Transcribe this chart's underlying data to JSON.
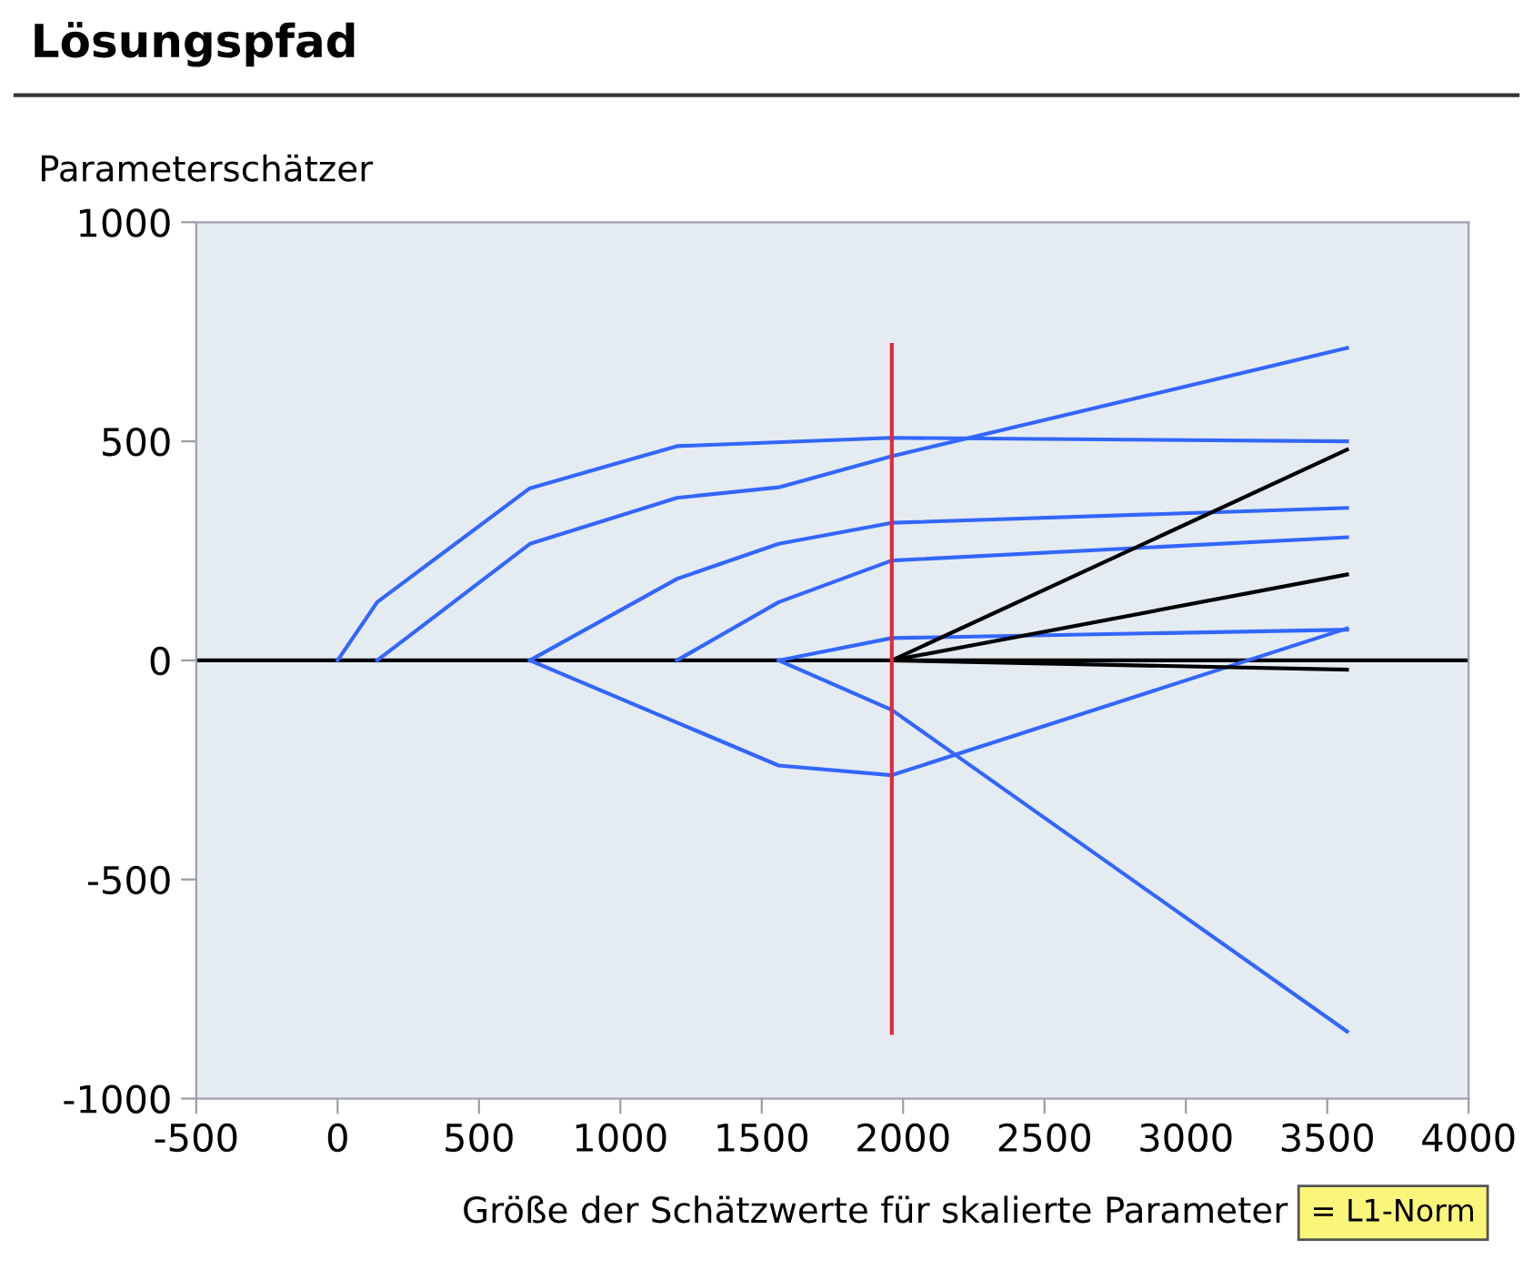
{
  "chart_data": {
    "type": "line",
    "title": "Lösungspfad",
    "xlabel": "Größe der Schätzwerte für skalierte Parameter",
    "ylabel": "Parameterschätzer",
    "annotations": [
      "= L1-Norm"
    ],
    "xlim": [
      -500,
      4000
    ],
    "xticks": [
      -500,
      0,
      500,
      1000,
      1500,
      2000,
      2500,
      3000,
      3500,
      4000
    ],
    "ylim": [
      -1000,
      1000
    ],
    "yticks": [
      -1000,
      -500,
      0,
      500,
      1000
    ],
    "grid": false,
    "marker": "none",
    "line_style": "solid",
    "ref_lines": [
      {
        "axis": "y",
        "value": 0,
        "color": "#000000"
      }
    ],
    "series": [
      {
        "color": "#3366ff",
        "x": [
          0,
          140,
          680,
          1200,
          1960,
          3570
        ],
        "values": [
          0,
          133,
          393,
          489,
          508,
          500
        ]
      },
      {
        "color": "#3366ff",
        "x": [
          140,
          680,
          1200,
          1560,
          1960,
          3570
        ],
        "values": [
          0,
          266,
          371,
          395,
          466,
          713
        ]
      },
      {
        "color": "#3366ff",
        "x": [
          680,
          1200,
          1560,
          1960,
          3570
        ],
        "values": [
          0,
          186,
          266,
          314,
          348
        ]
      },
      {
        "color": "#3366ff",
        "x": [
          1200,
          1560,
          1960,
          3570
        ],
        "values": [
          0,
          133,
          228,
          281
        ]
      },
      {
        "color": "#3366ff",
        "x": [
          1560,
          1960,
          3570
        ],
        "values": [
          0,
          51,
          70
        ]
      },
      {
        "color": "#3366ff",
        "x": [
          680,
          1560,
          1960,
          3570
        ],
        "values": [
          0,
          -240,
          -262,
          73
        ]
      },
      {
        "color": "#3366ff",
        "x": [
          1560,
          1960,
          3570
        ],
        "values": [
          0,
          -113,
          -847
        ]
      },
      {
        "color": "#000000",
        "x": [
          1960,
          3570
        ],
        "values": [
          0,
          481
        ]
      },
      {
        "color": "#000000",
        "x": [
          1960,
          3570
        ],
        "values": [
          0,
          196
        ]
      },
      {
        "color": "#000000",
        "x": [
          1960,
          3570
        ],
        "values": [
          0,
          -21
        ]
      },
      {
        "color": "#e8253a",
        "x": [
          1960,
          1960
        ],
        "values": [
          -850,
          720
        ]
      }
    ]
  }
}
